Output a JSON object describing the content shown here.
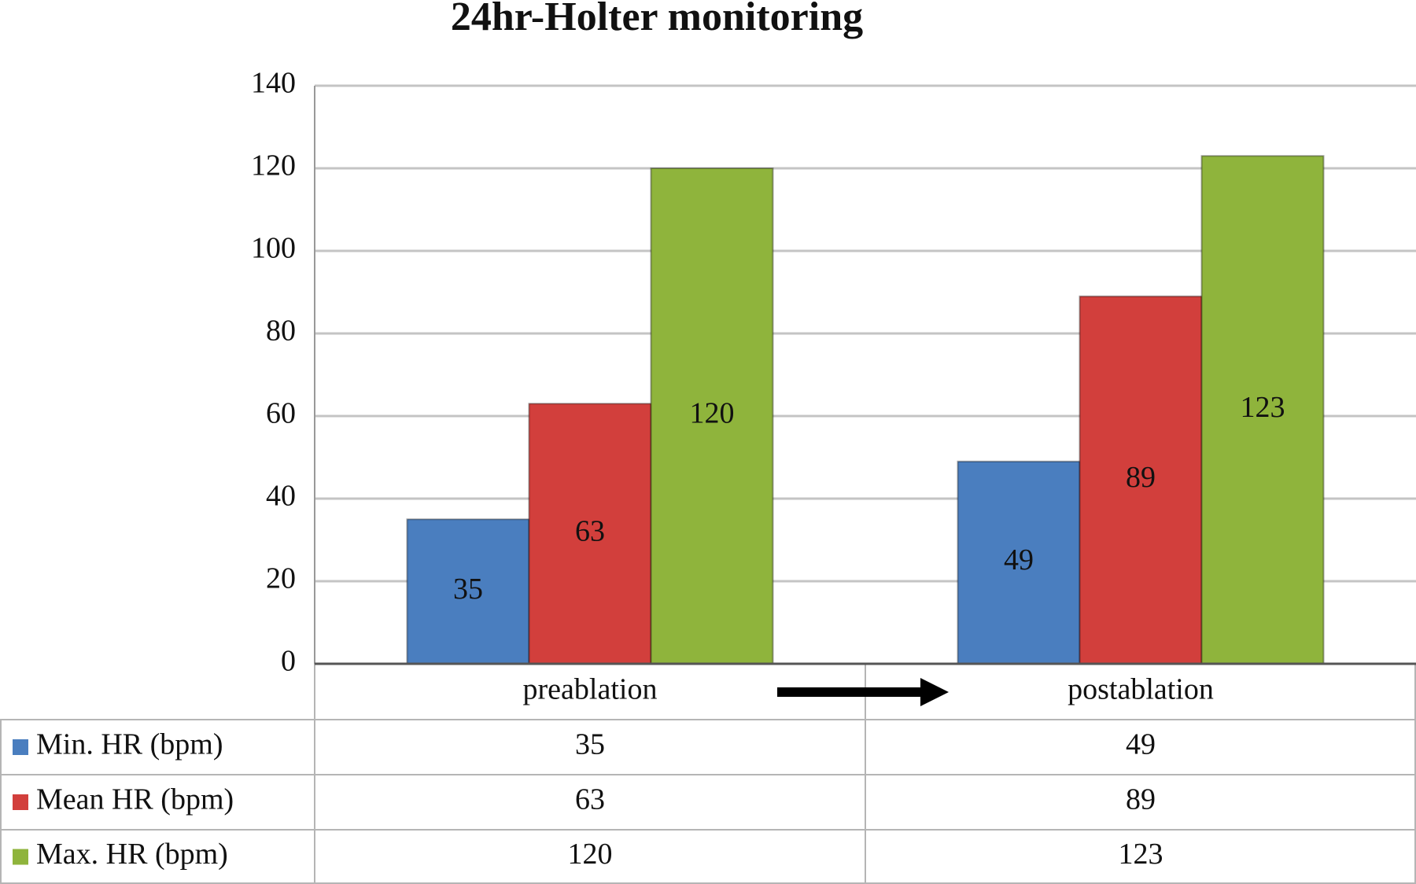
{
  "chart_data": {
    "type": "bar",
    "title": "24hr-Holter monitoring",
    "categories": [
      "preablation",
      "postablation"
    ],
    "series": [
      {
        "name": "Min. HR (bpm)",
        "color": "#4a7ebf",
        "values": [
          35,
          49
        ]
      },
      {
        "name": "Mean HR (bpm)",
        "color": "#d23f3c",
        "values": [
          63,
          89
        ]
      },
      {
        "name": "Max. HR (bpm)",
        "color": "#8fb43c",
        "values": [
          120,
          123
        ]
      }
    ],
    "ylim": [
      0,
      140
    ],
    "yticks": [
      0,
      20,
      40,
      60,
      80,
      100,
      120,
      140
    ],
    "grid": true
  }
}
